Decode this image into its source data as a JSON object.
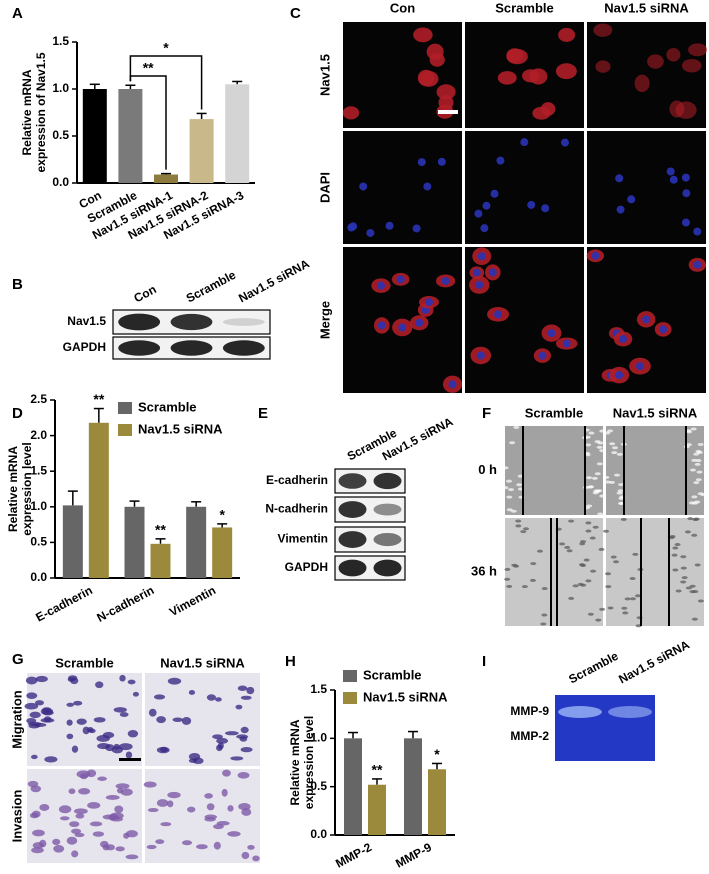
{
  "chart_data": [
    {
      "type": "bar",
      "panel_label": "A",
      "ylabel": [
        "Relative mRNA",
        "expression of Nav1.5"
      ],
      "categories": [
        "Con",
        "Scramble",
        "Nav1.5 siRNA-1",
        "Nav1.5 siRNA-2",
        "Nav1.5 siRNA-3"
      ],
      "values": [
        1.0,
        1.0,
        0.09,
        0.68,
        1.05
      ],
      "errors": [
        0.05,
        0.04,
        0.01,
        0.06,
        0.03
      ],
      "colors": [
        "#000000",
        "#7a7a7a",
        "#8c7b3c",
        "#c8b88a",
        "#d4d4d4"
      ],
      "ylim": [
        0,
        1.5
      ],
      "yticks": [
        {
          "value": 0,
          "label": "0.0"
        },
        0.5,
        {
          "value": 1,
          "label": "1.0"
        },
        1.5
      ],
      "annotations": [
        {
          "text": "**",
          "between": [
            "Scramble",
            "Nav1.5 siRNA-1"
          ]
        },
        {
          "text": "*",
          "between": [
            "Scramble",
            "Nav1.5 siRNA-2"
          ]
        }
      ]
    },
    {
      "type": "grouped_bar",
      "panel_label": "D",
      "ylabel": [
        "Relative mRNA",
        "expression level"
      ],
      "categories": [
        "E-cadherin",
        "N-cadherin",
        "Vimentin"
      ],
      "series": [
        {
          "name": "Scramble",
          "color": "#666666",
          "values": [
            1.02,
            1.0,
            1.0
          ],
          "errors": [
            0.2,
            0.08,
            0.07
          ]
        },
        {
          "name": "Nav1.5 siRNA",
          "color": "#9c8a3c",
          "values": [
            2.18,
            0.48,
            0.71
          ],
          "errors": [
            0.2,
            0.07,
            0.05
          ],
          "significance": [
            "**",
            "**",
            "*"
          ]
        }
      ],
      "ylim": [
        0,
        2.5
      ],
      "yticks": [
        {
          "value": 0,
          "label": "0.0"
        },
        0.5,
        {
          "value": 1,
          "label": "1.0"
        },
        1.5,
        {
          "value": 2,
          "label": "2.0"
        },
        2.5
      ]
    },
    {
      "type": "grouped_bar",
      "panel_label": "H",
      "ylabel": [
        "Relative mRNA",
        "expression level"
      ],
      "categories": [
        "MMP-2",
        "MMP-9"
      ],
      "series": [
        {
          "name": "Scramble",
          "color": "#666666",
          "values": [
            1.0,
            1.0
          ],
          "errors": [
            0.06,
            0.07
          ]
        },
        {
          "name": "Nav1.5 siRNA",
          "color": "#9c8a3c",
          "values": [
            0.52,
            0.68
          ],
          "errors": [
            0.06,
            0.06
          ],
          "significance": [
            "**",
            "*"
          ]
        }
      ],
      "ylim": [
        0,
        1.5
      ],
      "yticks": [
        {
          "value": 0,
          "label": "0.0"
        },
        0.5,
        {
          "value": 1,
          "label": "1.0"
        },
        1.5
      ]
    }
  ],
  "blots": [
    {
      "panel_label": "B",
      "columns": [
        "Con",
        "Scramble",
        "Nav1.5 siRNA"
      ],
      "rows": [
        "Nav1.5",
        "GAPDH"
      ]
    },
    {
      "panel_label": "E",
      "columns": [
        "Scramble",
        "Nav1.5 siRNA"
      ],
      "rows": [
        "E-cadherin",
        "N-cadherin",
        "Vimentin",
        "GAPDH"
      ]
    }
  ],
  "images": [
    {
      "panel_label": "C",
      "columns": [
        "Con",
        "Scramble",
        "Nav1.5 siRNA"
      ],
      "rows": [
        "Nav1.5",
        "DAPI",
        "Merge"
      ]
    },
    {
      "panel_label": "F",
      "columns": [
        "Scramble",
        "Nav1.5 siRNA"
      ],
      "rows": [
        "0 h",
        "36 h"
      ]
    },
    {
      "panel_label": "G",
      "columns": [
        "Scramble",
        "Nav1.5 siRNA"
      ],
      "rows": [
        "Migration",
        "Invasion"
      ]
    }
  ],
  "gel": {
    "panel_label": "I",
    "columns": [
      "Scramble",
      "Nav1.5 siRNA"
    ],
    "rows": [
      "MMP-9",
      "MMP-2"
    ]
  }
}
